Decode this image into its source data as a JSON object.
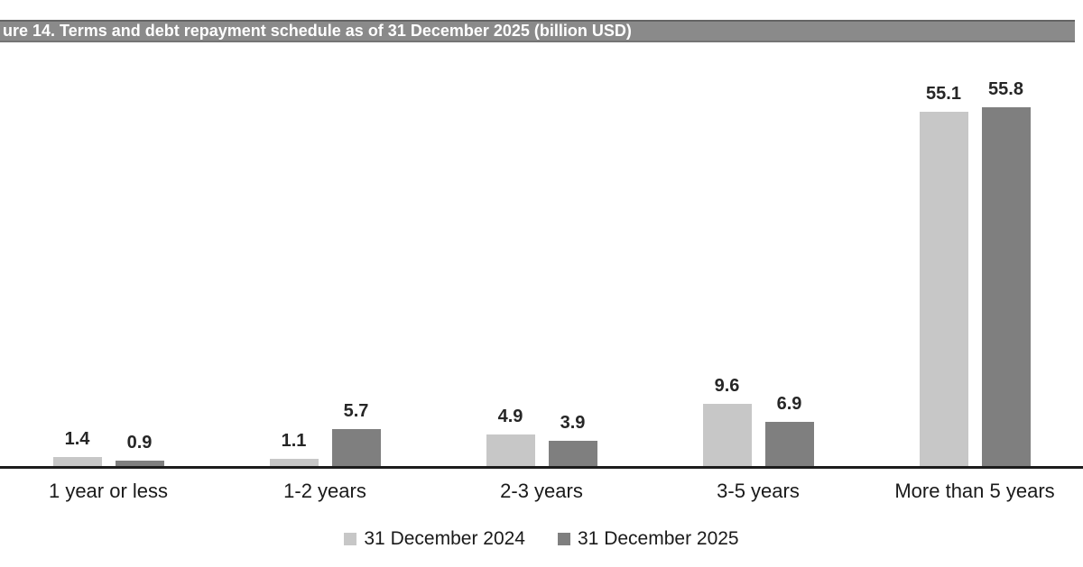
{
  "title_bar": {
    "text": "ure 14. Terms and debt repayment schedule as of 31 December 2025 (billion USD)"
  },
  "colors": {
    "title_bar_bg": "#8a8a8a",
    "title_bar_text": "#ffffff",
    "axis_line": "#1c1c1c",
    "label_text": "#1a1a1a",
    "series_2024": "#c7c7c7",
    "series_2025": "#7f7f7f"
  },
  "chart_data": {
    "type": "bar",
    "title": "ure 14. Terms and debt repayment schedule as of 31 December 2025 (billion USD)",
    "categories": [
      "1 year or less",
      "1-2 years",
      "2-3 years",
      "3-5 years",
      "More than 5 years"
    ],
    "series": [
      {
        "name": "31 December 2024",
        "color": "#c7c7c7",
        "values": [
          1.4,
          1.1,
          4.9,
          9.6,
          55.1
        ]
      },
      {
        "name": "31 December 2025",
        "color": "#7f7f7f",
        "values": [
          0.9,
          5.7,
          3.9,
          6.9,
          55.8
        ]
      }
    ],
    "xlabel": "",
    "ylabel": "",
    "ylim": [
      0,
      64
    ],
    "grid": false,
    "value_labels": true,
    "value_label_decimals": 1,
    "legend_position": "bottom"
  }
}
